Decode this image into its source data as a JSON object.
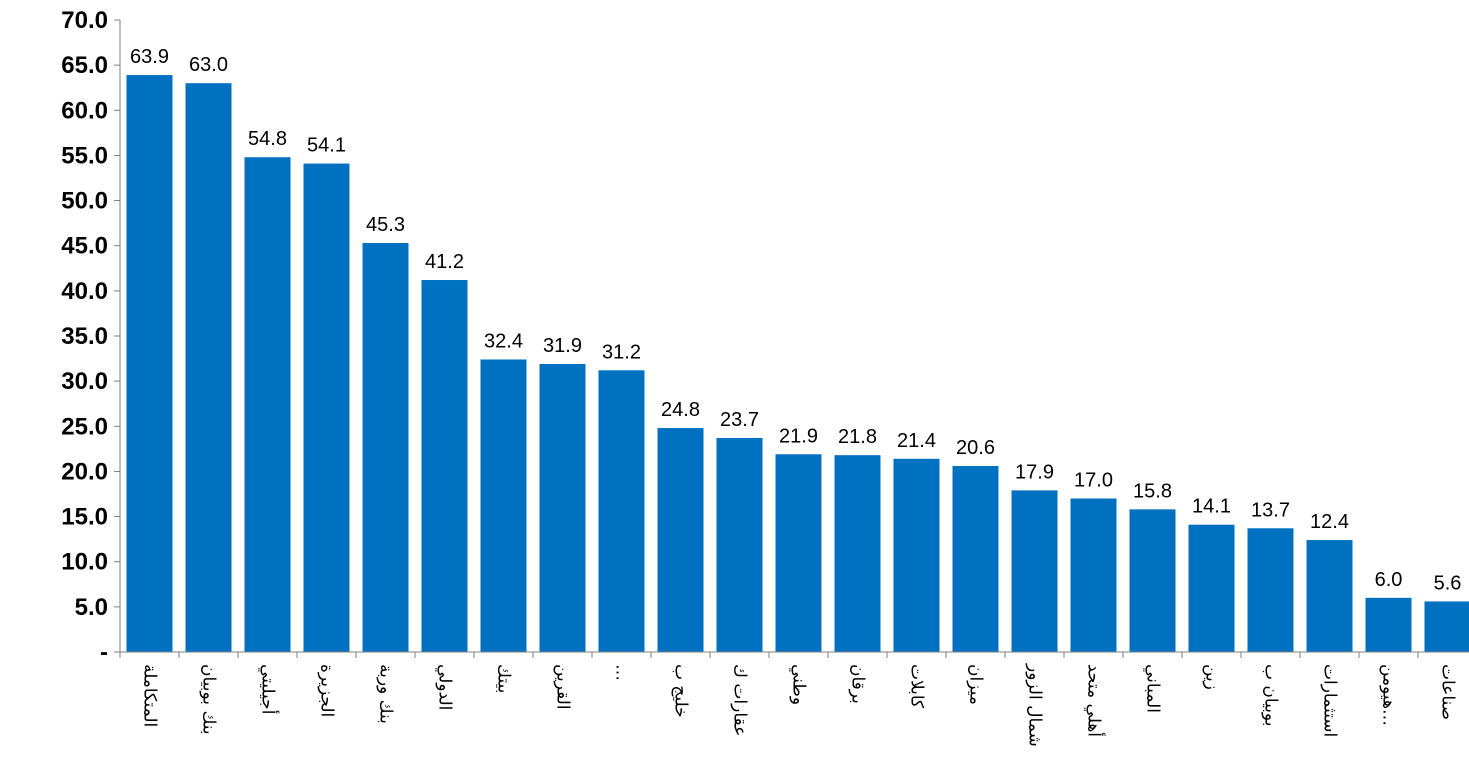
{
  "chart_data": {
    "type": "bar",
    "categories": [
      "المتكاملة",
      "بنك بوبيان",
      "أجيليتي",
      "الجزيرة",
      "بنك وربة",
      "الدولي",
      "بيتك",
      "القرين",
      "…",
      "خليج ب",
      "عقارات ك",
      "وطني",
      "برقان",
      "كابلات",
      "ميزان",
      "شمال الزور",
      "أهلي متحد",
      "المباني",
      "زين",
      "بوبيان ب",
      "استثمارات",
      "هيومن…",
      "صناعات"
    ],
    "values": [
      63.9,
      63.0,
      54.8,
      54.1,
      45.3,
      41.2,
      32.4,
      31.9,
      31.2,
      24.8,
      23.7,
      21.9,
      21.8,
      21.4,
      20.6,
      17.9,
      17.0,
      15.8,
      14.1,
      13.7,
      12.4,
      6.0,
      5.6
    ],
    "value_labels": [
      "63.9",
      "63.0",
      "54.8",
      "54.1",
      "45.3",
      "41.2",
      "32.4",
      "31.9",
      "31.2",
      "24.8",
      "23.7",
      "21.9",
      "21.8",
      "21.4",
      "20.6",
      "17.9",
      "17.0",
      "15.8",
      "14.1",
      "13.7",
      "12.4",
      "6.0",
      "5.6"
    ],
    "yticks": [
      "-",
      "5.0",
      "10.0",
      "15.0",
      "20.0",
      "25.0",
      "30.0",
      "35.0",
      "40.0",
      "45.0",
      "50.0",
      "55.0",
      "60.0",
      "65.0",
      "70.0"
    ],
    "ylim": [
      0,
      70
    ],
    "bar_color": "#0070C0",
    "grid": false,
    "title": "",
    "xlabel": "",
    "ylabel": ""
  }
}
